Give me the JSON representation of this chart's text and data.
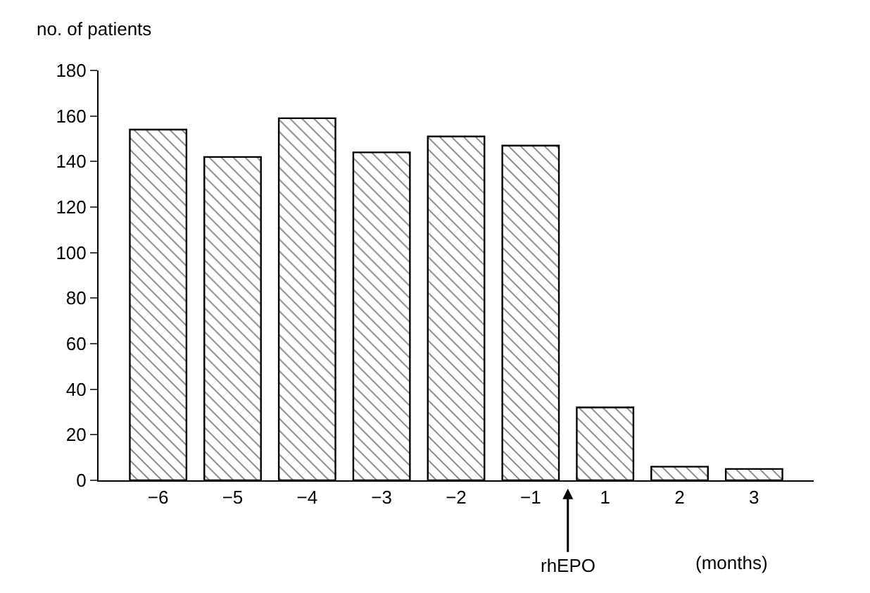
{
  "chart_data": {
    "type": "bar",
    "ylabel": "no. of patients",
    "xlabel": "(months)",
    "categories": [
      "−6",
      "−5",
      "−4",
      "−3",
      "−2",
      "−1",
      "1",
      "2",
      "3"
    ],
    "values": [
      154,
      142,
      159,
      144,
      151,
      147,
      32,
      6,
      5
    ],
    "color": "#000000",
    "ylim": [
      0,
      180
    ],
    "yticks": [
      0,
      20,
      40,
      60,
      80,
      100,
      120,
      140,
      160,
      180
    ],
    "annotations": [
      "rhEPO"
    ]
  }
}
